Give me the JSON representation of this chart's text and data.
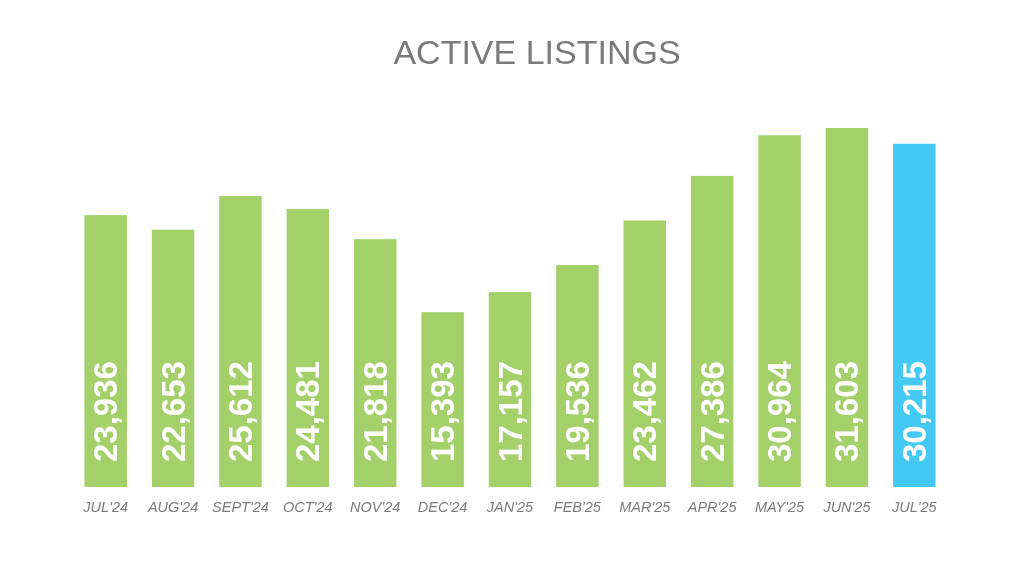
{
  "chart_data": {
    "type": "bar",
    "title": "ACTIVE LISTINGS",
    "categories": [
      "JUL'24",
      "AUG'24",
      "SEPT'24",
      "OCT'24",
      "NOV'24",
      "DEC'24",
      "JAN'25",
      "FEB'25",
      "MAR'25",
      "APR'25",
      "MAY'25",
      "JUN'25",
      "JUL'25"
    ],
    "values": [
      23936,
      22653,
      25612,
      24481,
      21818,
      15393,
      17157,
      19536,
      23462,
      27386,
      30964,
      31603,
      30215
    ],
    "value_labels": [
      "23,936",
      "22,653",
      "25,612",
      "24,481",
      "21,818",
      "15,393",
      "17,157",
      "19,536",
      "23,462",
      "27,386",
      "30,964",
      "31,603",
      "30,215"
    ],
    "colors": [
      "#a4d06a",
      "#a4d06a",
      "#a4d06a",
      "#a4d06a",
      "#a4d06a",
      "#a4d06a",
      "#a4d06a",
      "#a4d06a",
      "#a4d06a",
      "#a4d06a",
      "#a4d06a",
      "#a4d06a",
      "#43c9f4"
    ],
    "tick_labels": "x"
  }
}
